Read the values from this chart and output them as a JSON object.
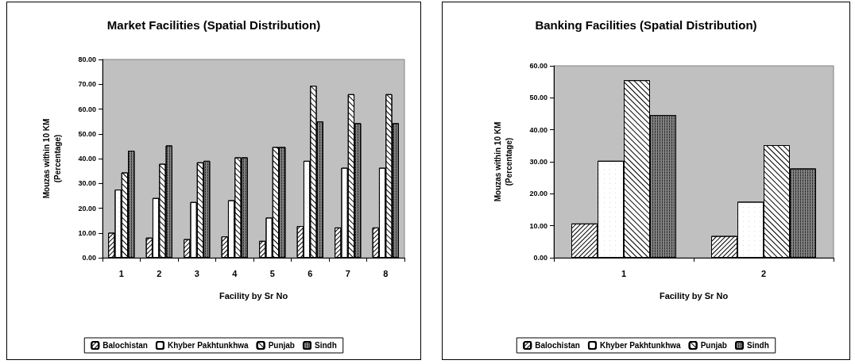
{
  "chart_data": [
    {
      "type": "bar",
      "title": "Market Facilities (Spatial Distribution)",
      "xlabel": "Facility by Sr No",
      "ylabel": "Mouzas within 10 KM\n(Percentage)",
      "categories": [
        "1",
        "2",
        "3",
        "4",
        "5",
        "6",
        "7",
        "8"
      ],
      "series": [
        {
          "name": "Balochistan",
          "color": "#ffffff",
          "values": [
            10.1,
            8.1,
            7.5,
            8.6,
            6.8,
            12.8,
            12.2,
            12.2
          ]
        },
        {
          "name": "Khyber Pakhtunkhwa",
          "color": "#ffffff",
          "values": [
            27.5,
            24.1,
            22.5,
            23.2,
            16.2,
            39.1,
            36.3,
            36.3
          ]
        },
        {
          "name": "Punjab",
          "color": "#ffffff",
          "values": [
            34.4,
            37.9,
            38.5,
            40.5,
            44.7,
            69.4,
            66.0,
            66.0
          ]
        },
        {
          "name": "Sindh",
          "color": "#808080",
          "values": [
            43.2,
            45.3,
            39.1,
            40.5,
            44.7,
            55.0,
            54.3,
            54.3
          ]
        }
      ],
      "ylim": [
        0,
        80
      ],
      "yticks": [
        {
          "value": 0,
          "label": "0.00"
        },
        {
          "value": 10,
          "label": "10.00"
        },
        {
          "value": 20,
          "label": "20.00"
        },
        {
          "value": 30,
          "label": "30.00"
        },
        {
          "value": 40,
          "label": "40.00"
        },
        {
          "value": 50,
          "label": "50.00"
        },
        {
          "value": 60,
          "label": "60.00"
        },
        {
          "value": 70,
          "label": "70.00"
        },
        {
          "value": 80,
          "label": "80.00"
        }
      ],
      "grid": false,
      "legend": "bottom"
    },
    {
      "type": "bar",
      "title": "Banking Facilities (Spatial Distribution)",
      "xlabel": "Facility by Sr No",
      "ylabel": "Mouzas within 10 KM\n(Percentage)",
      "categories": [
        "1",
        "2"
      ],
      "series": [
        {
          "name": "Balochistan",
          "color": "#ffffff",
          "values": [
            10.7,
            6.8
          ]
        },
        {
          "name": "Khyber Pakhtunkhwa",
          "color": "#ffffff",
          "values": [
            30.3,
            17.5
          ]
        },
        {
          "name": "Punjab",
          "color": "#ffffff",
          "values": [
            55.5,
            35.2
          ]
        },
        {
          "name": "Sindh",
          "color": "#808080",
          "values": [
            44.6,
            27.9
          ]
        }
      ],
      "ylim": [
        0,
        60
      ],
      "yticks": [
        {
          "value": 0,
          "label": "0.00"
        },
        {
          "value": 10,
          "label": "10.00"
        },
        {
          "value": 20,
          "label": "20.00"
        },
        {
          "value": 30,
          "label": "30.00"
        },
        {
          "value": 40,
          "label": "40.00"
        },
        {
          "value": 50,
          "label": "50.00"
        },
        {
          "value": 60,
          "label": "60.00"
        }
      ],
      "grid": false,
      "legend": "bottom"
    }
  ]
}
